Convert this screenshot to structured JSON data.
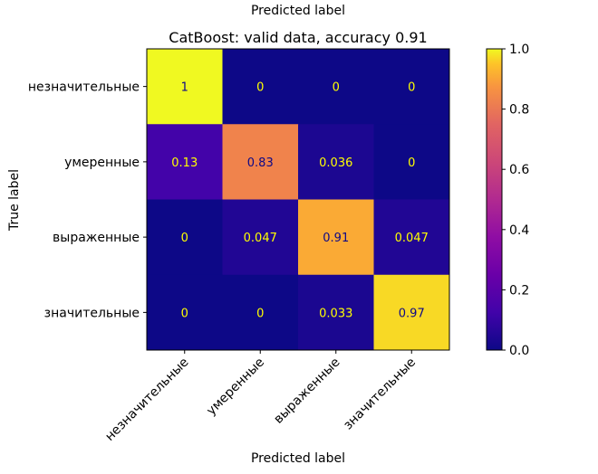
{
  "chart_data": {
    "type": "heatmap",
    "title": "CatBoost: valid data, accuracy 0.91",
    "top_label": "Predicted label",
    "xlabel": "Predicted label",
    "ylabel": "True label",
    "row_labels": [
      "незначительные",
      "умеренные",
      "выраженные",
      "значительные"
    ],
    "col_labels": [
      "незначительные",
      "умеренные",
      "выраженные",
      "значительные"
    ],
    "values": [
      [
        1,
        0,
        0,
        0
      ],
      [
        0.13,
        0.83,
        0.036,
        0
      ],
      [
        0,
        0.047,
        0.91,
        0.047
      ],
      [
        0,
        0,
        0.033,
        0.97
      ]
    ],
    "value_labels": [
      [
        "1",
        "0",
        "0",
        "0"
      ],
      [
        "0.13",
        "0.83",
        "0.036",
        "0"
      ],
      [
        "0",
        "0.047",
        "0.91",
        "0.047"
      ],
      [
        "0",
        "0",
        "0.033",
        "0.97"
      ]
    ],
    "colormap": "plasma",
    "colorbar": {
      "range": [
        0.0,
        1.0
      ],
      "ticks": [
        0.0,
        0.2,
        0.4,
        0.6,
        0.8,
        1.0
      ],
      "tick_labels": [
        "0.0",
        "0.2",
        "0.4",
        "0.6",
        "0.8",
        "1.0"
      ]
    },
    "text_color_dark_bg": "#ffff00",
    "text_color_light_bg": "#0d0887"
  }
}
